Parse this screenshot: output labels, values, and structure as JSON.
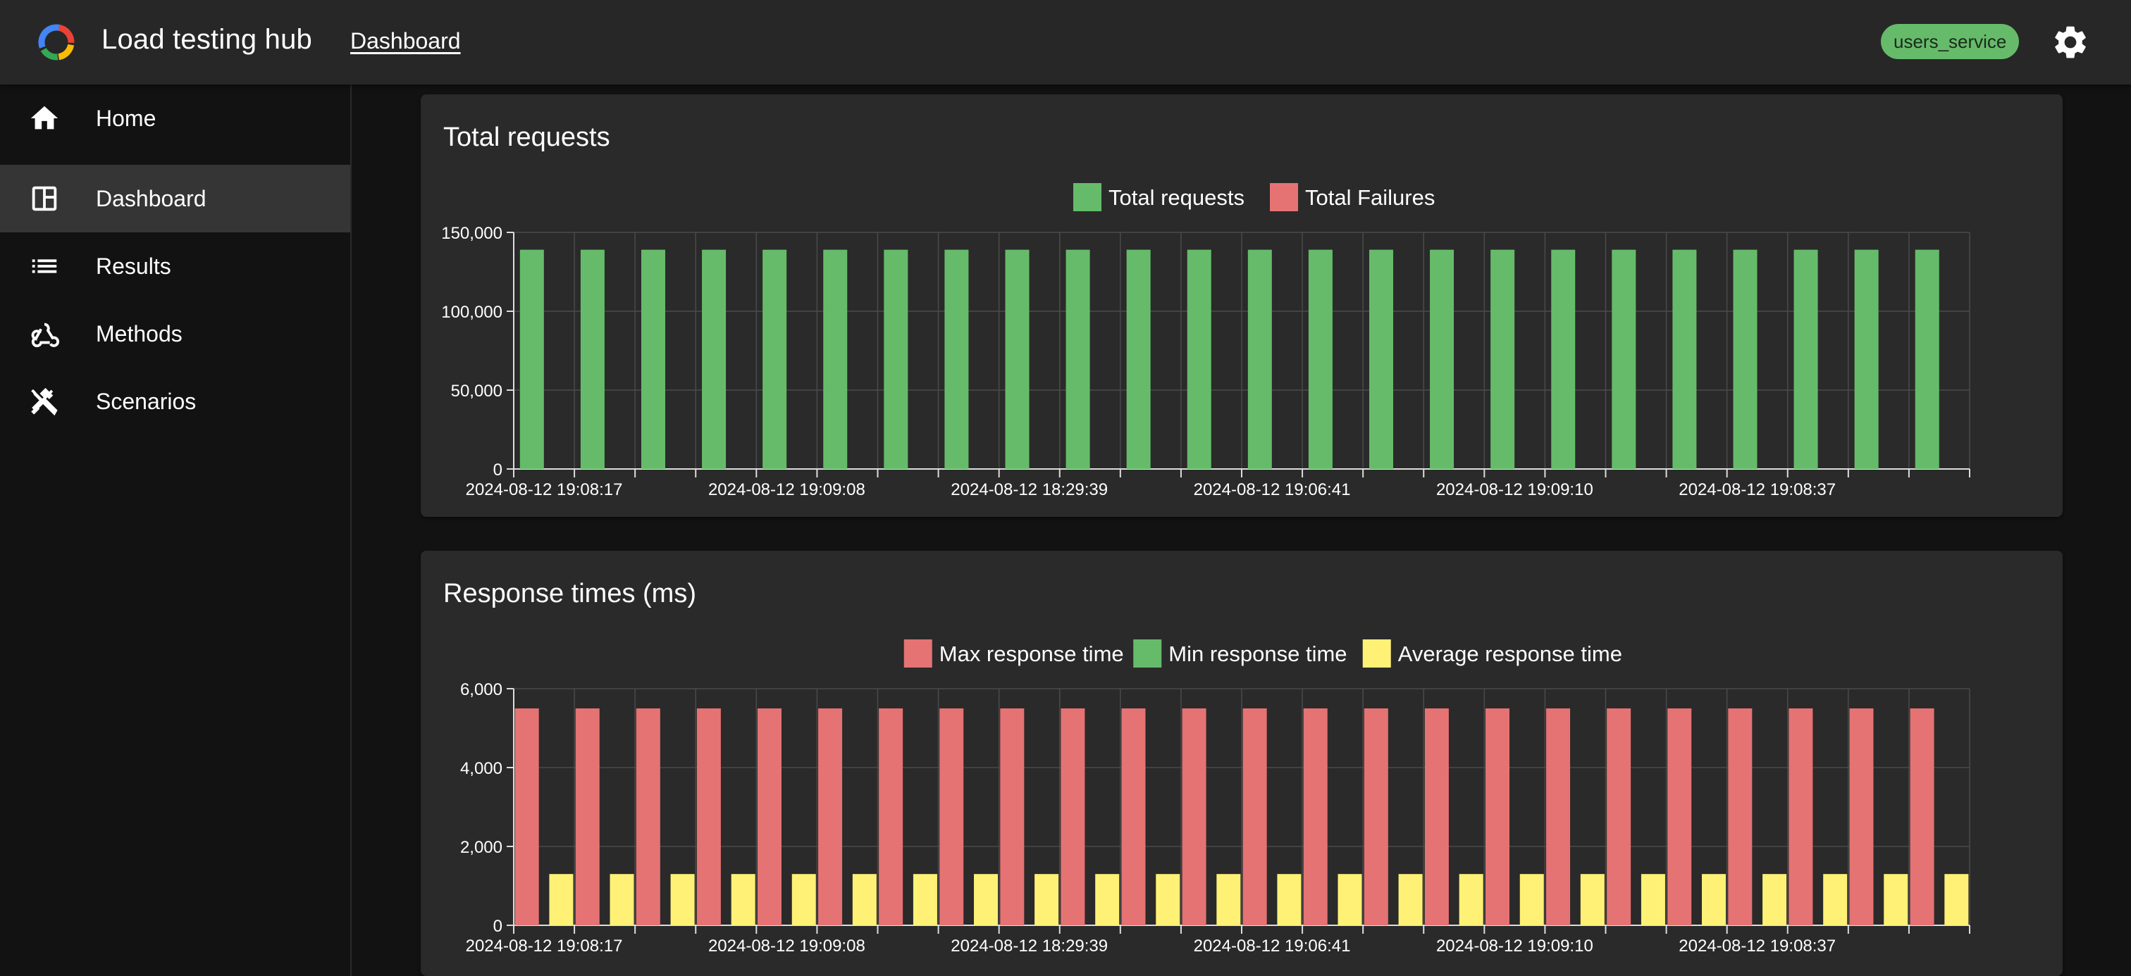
{
  "app": {
    "title": "Load testing hub",
    "breadcrumb": "Dashboard",
    "service_chip": "users_service",
    "chip_color": "#66bb6a"
  },
  "sidebar": {
    "items": [
      {
        "label": "Home",
        "icon": "home-icon",
        "active": false
      },
      {
        "label": "Dashboard",
        "icon": "dashboard-icon",
        "active": true
      },
      {
        "label": "Results",
        "icon": "list-icon",
        "active": false
      },
      {
        "label": "Methods",
        "icon": "webhook-icon",
        "active": false
      },
      {
        "label": "Scenarios",
        "icon": "tools-icon",
        "active": false
      }
    ]
  },
  "chart_data": [
    {
      "type": "bar",
      "title": "Total requests",
      "legend_position": "top-center",
      "grid": true,
      "ylim": [
        0,
        150000
      ],
      "yticks": [
        "0",
        "50,000",
        "100,000",
        "150,000"
      ],
      "xtick_labels": [
        "2024-08-12 19:08:17",
        "2024-08-12 19:09:08",
        "2024-08-12 18:29:39",
        "2024-08-12 19:06:41",
        "2024-08-12 19:09:10",
        "2024-08-12 19:08:37"
      ],
      "series": [
        {
          "name": "Total requests",
          "color": "#66bb6a",
          "values": [
            139000,
            139000,
            139000,
            139000,
            139000,
            139000,
            139000,
            139000,
            139000,
            139000,
            139000,
            139000,
            139000,
            139000,
            139000,
            139000,
            139000,
            139000,
            139000,
            139000,
            139000,
            139000,
            139000,
            139000
          ]
        },
        {
          "name": "Total Failures",
          "color": "#e57373",
          "values": [
            0,
            0,
            0,
            0,
            0,
            0,
            0,
            0,
            0,
            0,
            0,
            0,
            0,
            0,
            0,
            0,
            0,
            0,
            0,
            0,
            0,
            0,
            0,
            0
          ]
        }
      ]
    },
    {
      "type": "bar",
      "title": "Response times (ms)",
      "legend_position": "top-center",
      "grid": true,
      "ylim": [
        0,
        6000
      ],
      "yticks": [
        "0",
        "2,000",
        "4,000",
        "6,000"
      ],
      "xtick_labels": [
        "2024-08-12 19:08:17",
        "2024-08-12 19:09:08",
        "2024-08-12 18:29:39",
        "2024-08-12 19:06:41",
        "2024-08-12 19:09:10",
        "2024-08-12 19:08:37"
      ],
      "series": [
        {
          "name": "Max response time",
          "color": "#e57373",
          "values": [
            5500,
            5500,
            5500,
            5500,
            5500,
            5500,
            5500,
            5500,
            5500,
            5500,
            5500,
            5500,
            5500,
            5500,
            5500,
            5500,
            5500,
            5500,
            5500,
            5500,
            5500,
            5500,
            5500,
            5500
          ]
        },
        {
          "name": "Min response time",
          "color": "#66bb6a",
          "values": [
            0,
            0,
            0,
            0,
            0,
            0,
            0,
            0,
            0,
            0,
            0,
            0,
            0,
            0,
            0,
            0,
            0,
            0,
            0,
            0,
            0,
            0,
            0,
            0
          ]
        },
        {
          "name": "Average response time",
          "color": "#fff176",
          "values": [
            1300,
            1300,
            1300,
            1300,
            1300,
            1300,
            1300,
            1300,
            1300,
            1300,
            1300,
            1300,
            1300,
            1300,
            1300,
            1300,
            1300,
            1300,
            1300,
            1300,
            1300,
            1300,
            1300,
            1300
          ]
        }
      ]
    }
  ]
}
